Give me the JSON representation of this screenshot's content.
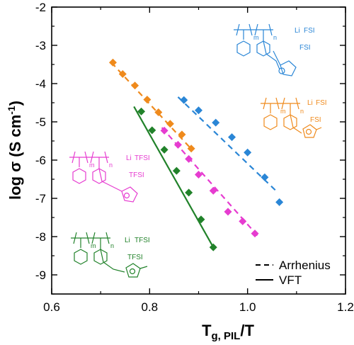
{
  "chart_data": {
    "type": "scatter",
    "xlabel_main": "T",
    "xlabel_sub": "g, PIL",
    "xlabel_tail": "/T",
    "ylabel": "log σ (S cm",
    "ylabel_sup": "-1",
    "ylabel_close": ")",
    "xlim": [
      0.6,
      1.2
    ],
    "ylim": [
      -9.5,
      -2
    ],
    "x_ticks": [
      "0.6",
      "0.8",
      "1.0",
      "1.2"
    ],
    "x_tick_values": [
      0.6,
      0.8,
      1.0,
      1.2
    ],
    "y_ticks": [
      "-2",
      "-3",
      "-4",
      "-5",
      "-6",
      "-7",
      "-8",
      "-9"
    ],
    "y_tick_values": [
      -2,
      -3,
      -4,
      -5,
      -6,
      -7,
      -8,
      -9
    ],
    "grid": false,
    "legend_position": "bottom-right",
    "legend": [
      {
        "label": "Arrhenius",
        "style": "dashed"
      },
      {
        "label": "VFT",
        "style": "solid"
      }
    ],
    "series": [
      {
        "color": "#2a86d6",
        "fit": "Arrhenius",
        "points": [
          [
            0.87,
            -4.43
          ],
          [
            0.9,
            -4.7
          ],
          [
            0.935,
            -5.02
          ],
          [
            0.968,
            -5.4
          ],
          [
            1.0,
            -5.8
          ],
          [
            1.035,
            -6.45
          ],
          [
            1.065,
            -7.1
          ]
        ],
        "fit_line": [
          [
            0.858,
            -4.35
          ],
          [
            1.062,
            -6.85
          ]
        ]
      },
      {
        "color": "#ef8a1c",
        "fit": "Arrhenius",
        "points": [
          [
            0.725,
            -3.45
          ],
          [
            0.745,
            -3.75
          ],
          [
            0.77,
            -4.05
          ],
          [
            0.795,
            -4.42
          ],
          [
            0.818,
            -4.75
          ],
          [
            0.842,
            -5.05
          ],
          [
            0.866,
            -5.33
          ],
          [
            0.885,
            -5.7
          ]
        ],
        "fit_line": [
          [
            0.722,
            -3.45
          ],
          [
            0.888,
            -5.75
          ]
        ]
      },
      {
        "color": "#e63cd0",
        "fit": "Arrhenius",
        "points": [
          [
            0.83,
            -5.23
          ],
          [
            0.858,
            -5.6
          ],
          [
            0.88,
            -5.97
          ],
          [
            0.9,
            -6.38
          ],
          [
            0.93,
            -6.8
          ],
          [
            0.96,
            -7.35
          ],
          [
            0.99,
            -7.6
          ],
          [
            1.015,
            -7.92
          ]
        ],
        "fit_line": [
          [
            0.825,
            -5.15
          ],
          [
            1.02,
            -7.97
          ]
        ]
      },
      {
        "color": "#21822a",
        "fit": "VFT",
        "points": [
          [
            0.783,
            -4.73
          ],
          [
            0.805,
            -5.22
          ],
          [
            0.83,
            -5.73
          ],
          [
            0.855,
            -6.28
          ],
          [
            0.88,
            -6.85
          ],
          [
            0.905,
            -7.55
          ],
          [
            0.93,
            -8.28
          ]
        ],
        "fit_line": [
          [
            0.768,
            -4.6
          ],
          [
            0.931,
            -8.3
          ]
        ]
      }
    ],
    "structure_labels": {
      "blue": {
        "li": "Li",
        "anion1": "FSI",
        "anion2": "FSI",
        "m": "m",
        "n": "n"
      },
      "orange": {
        "li": "Li",
        "anion1": "FSI",
        "anion2": "FSI",
        "m": "m",
        "n": "n"
      },
      "magenta": {
        "li": "Li",
        "anion1": "TFSI",
        "anion2": "TFSI",
        "m": "m",
        "n": "n"
      },
      "green": {
        "li": "Li",
        "anion1": "TFSI",
        "anion2": "TFSI",
        "m": "m",
        "n": "n"
      }
    }
  }
}
